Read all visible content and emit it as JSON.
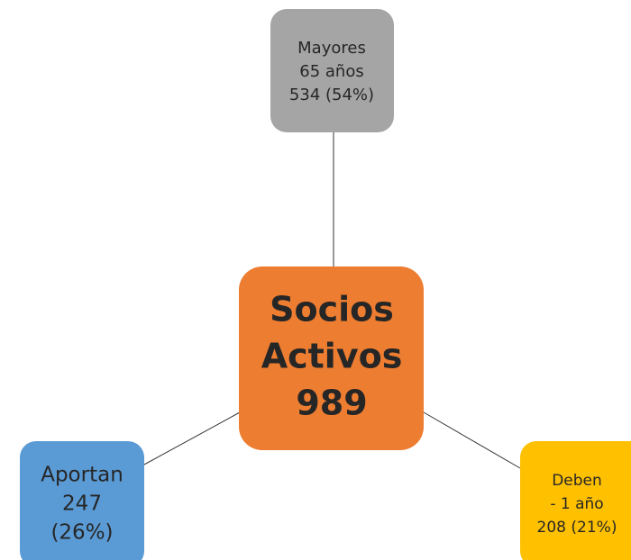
{
  "nodes": [
    {
      "lines": [
        "Socios",
        "Activos",
        "989"
      ]
    },
    {
      "lines": [
        "Mayores",
        "65 años",
        "534 (54%)"
      ]
    },
    {
      "lines": [
        "Aportan",
        "247",
        "(26%)"
      ]
    },
    {
      "lines": [
        "Deben",
        "- 1 año",
        "208 (21%)"
      ]
    }
  ]
}
